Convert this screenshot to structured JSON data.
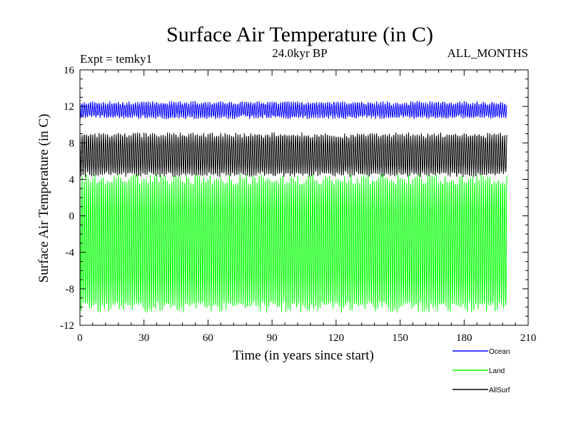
{
  "chart_data": {
    "type": "line",
    "title": "Surface Air Temperature (in C)",
    "subtitle": "24.0kyr BP",
    "left_label": "Expt = temky1",
    "right_label": "ALL_MONTHS",
    "xlabel": "Time (in years since start)",
    "ylabel": "Surface Air Temperature (in C)",
    "xlim": [
      0,
      210
    ],
    "ylim": [
      -12,
      16
    ],
    "x_ticks": [
      0,
      30,
      60,
      90,
      120,
      150,
      180,
      210
    ],
    "y_ticks": [
      -12,
      -8,
      -4,
      0,
      4,
      8,
      12,
      16
    ],
    "x_minor_step": 6,
    "y_minor_step": 1,
    "x_data_range": [
      0,
      200
    ],
    "samples_per_year": 12,
    "series": [
      {
        "name": "Ocean",
        "color": "#0000ff",
        "mean": 11.6,
        "min": 10.8,
        "max": 12.3,
        "jitter": 0.25
      },
      {
        "name": "Land",
        "color": "#00ff00",
        "mean": -3.0,
        "min": -10.0,
        "max": 4.0,
        "jitter": 0.6
      },
      {
        "name": "AllSurf",
        "color": "#000000",
        "mean": 6.7,
        "min": 4.6,
        "max": 8.9,
        "jitter": 0.3
      }
    ],
    "legend_position": "bottom-right"
  }
}
